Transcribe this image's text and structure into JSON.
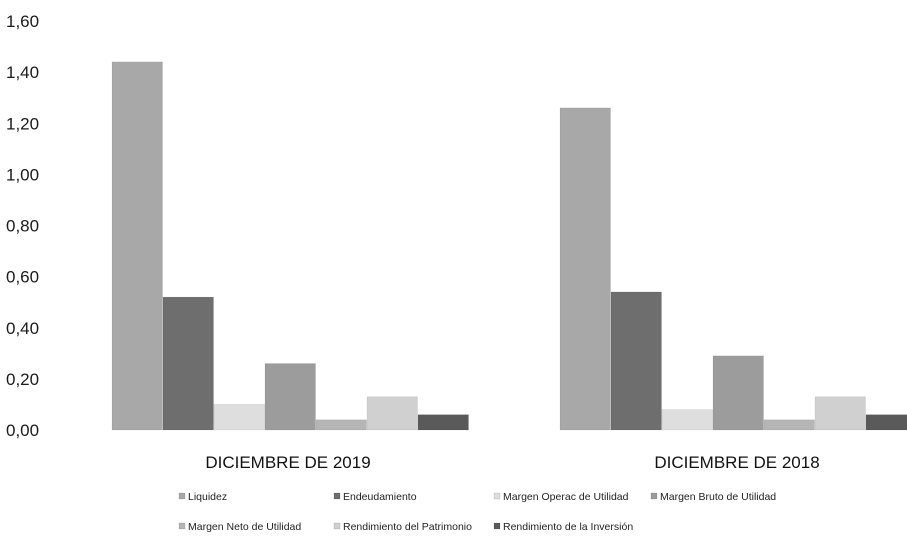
{
  "chart_data": {
    "type": "bar",
    "categories": [
      "DICIEMBRE DE 2019",
      "DICIEMBRE DE 2018"
    ],
    "ylim": [
      0,
      1.6
    ],
    "yticks": [
      "0,00",
      "0,20",
      "0,40",
      "0,60",
      "0,80",
      "1,00",
      "1,20",
      "1,40",
      "1,60"
    ],
    "grid": false,
    "legend_position": "bottom",
    "series": [
      {
        "name": "Liquidez",
        "values": [
          1.44,
          1.26
        ],
        "color": "#a8a8a8"
      },
      {
        "name": "Endeudamiento",
        "values": [
          0.52,
          0.54
        ],
        "color": "#6e6e6e"
      },
      {
        "name": "Margen Operac de Utilidad",
        "values": [
          0.1,
          0.08
        ],
        "color": "#dedede"
      },
      {
        "name": "Margen Bruto de Utilidad",
        "values": [
          0.26,
          0.29
        ],
        "color": "#9c9c9c"
      },
      {
        "name": "Margen Neto de Utilidad",
        "values": [
          0.04,
          0.04
        ],
        "color": "#b5b5b5"
      },
      {
        "name": "Rendimiento del Patrimonio",
        "values": [
          0.13,
          0.13
        ],
        "color": "#d0d0d0"
      },
      {
        "name": "Rendimiento de la Inversión",
        "values": [
          0.06,
          0.06
        ],
        "color": "#5a5a5a"
      }
    ]
  }
}
